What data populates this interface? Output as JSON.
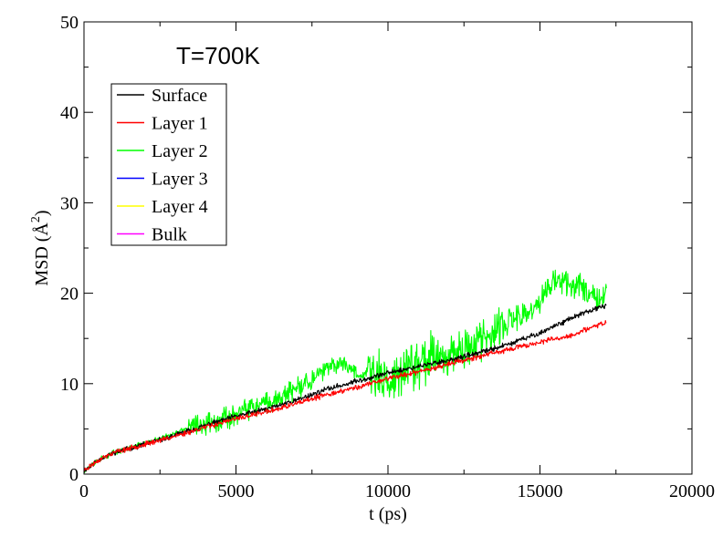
{
  "chart_data": {
    "type": "line",
    "title": "",
    "annotation": "T=700K",
    "xlabel": "t (ps)",
    "ylabel_text": "MSD (",
    "ylabel_unit": "Å",
    "ylabel_exp": "2",
    "ylabel_close": ")",
    "xlim": [
      0,
      20000
    ],
    "ylim": [
      0,
      50
    ],
    "x_ticks": [
      0,
      5000,
      10000,
      15000,
      20000
    ],
    "y_ticks": [
      0,
      10,
      20,
      30,
      40,
      50
    ],
    "grid": false,
    "legend_position": "top-left",
    "series": [
      {
        "name": "Surface",
        "color": "#000000",
        "x": [
          0,
          500,
          1000,
          2000,
          3000,
          4000,
          5000,
          6000,
          7000,
          8000,
          9000,
          10000,
          11000,
          12000,
          13000,
          14000,
          15000,
          16000,
          17000,
          17200
        ],
        "y": [
          0.4,
          1.6,
          2.4,
          3.3,
          4.3,
          5.4,
          6.4,
          7.2,
          8.2,
          9.4,
          10.3,
          11.2,
          11.9,
          12.6,
          13.4,
          14.4,
          15.6,
          17.2,
          18.5,
          18.7
        ],
        "noise": 0.35,
        "seed": 11
      },
      {
        "name": "Layer 1",
        "color": "#ff0000",
        "x": [
          0,
          500,
          1000,
          2000,
          3000,
          4000,
          5000,
          6000,
          7000,
          8000,
          9000,
          10000,
          11000,
          12000,
          13000,
          14000,
          15000,
          16000,
          17000,
          17200
        ],
        "y": [
          0.4,
          1.6,
          2.4,
          3.3,
          4.2,
          5.2,
          6.1,
          6.9,
          7.8,
          8.8,
          9.6,
          10.6,
          11.3,
          12.2,
          13.0,
          13.8,
          14.6,
          15.3,
          16.6,
          16.8
        ],
        "noise": 0.35,
        "seed": 23
      },
      {
        "name": "Layer 2",
        "color": "#00ff00",
        "x": [
          0,
          500,
          1000,
          2000,
          3000,
          3500,
          4000,
          5000,
          6000,
          7000,
          8000,
          8500,
          9000,
          9500,
          10000,
          11000,
          12000,
          13000,
          13500,
          14000,
          14500,
          15000,
          15500,
          16000,
          16500,
          17000,
          17200
        ],
        "y": [
          0.4,
          1.6,
          2.4,
          3.4,
          4.5,
          5.2,
          5.6,
          6.6,
          7.8,
          9.4,
          11.6,
          12.4,
          11.2,
          11.0,
          10.4,
          12.5,
          13.5,
          14.8,
          15.5,
          17.0,
          17.5,
          19.0,
          21.5,
          21.0,
          20.5,
          19.5,
          20.0
        ],
        "noise_sections": [
          [
            0,
            3400,
            0.35
          ],
          [
            3400,
            7500,
            1.5
          ],
          [
            7500,
            9300,
            1.1
          ],
          [
            9300,
            11500,
            3.8
          ],
          [
            11500,
            14000,
            2.8
          ],
          [
            14000,
            17200,
            1.8
          ]
        ],
        "seed": 37
      },
      {
        "name": "Layer 3",
        "color": "#0000ff",
        "x": [],
        "y": []
      },
      {
        "name": "Layer 4",
        "color": "#ffff00",
        "x": [],
        "y": []
      },
      {
        "name": "Bulk",
        "color": "#ff00ff",
        "x": [],
        "y": []
      }
    ]
  }
}
